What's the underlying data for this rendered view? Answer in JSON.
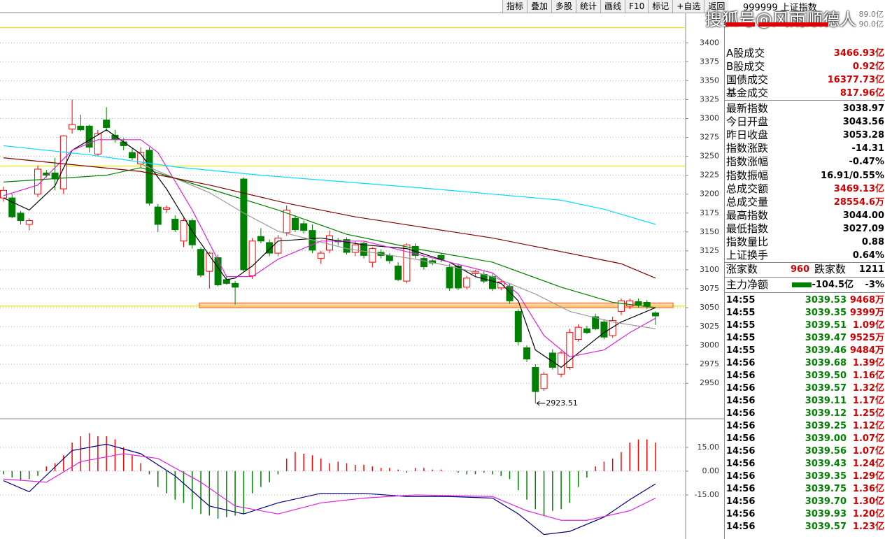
{
  "toolbar": [
    "指标",
    "叠加",
    "多股",
    "统计",
    "画线",
    "F10",
    "标记",
    "+自选",
    "返回"
  ],
  "watermark": "搜狐号@风雨顺德人",
  "header": {
    "title": "999999 上证指数",
    "scale": [
      "89.0亿",
      "90.0亿"
    ]
  },
  "panel": {
    "rows": [
      {
        "label": "A股成交",
        "value": "3466.93亿"
      },
      {
        "label": "B股成交",
        "value": "0.92亿"
      },
      {
        "label": "国债成交",
        "value": "16377.73亿"
      },
      {
        "label": "基金成交",
        "value": "817.96亿"
      },
      {
        "label": "最新指数",
        "value": "3038.97"
      },
      {
        "label": "今日开盘",
        "value": "3043.56"
      },
      {
        "label": "昨日收盘",
        "value": "3053.28"
      },
      {
        "label": "指数涨跌",
        "value": "-14.31"
      },
      {
        "label": "指数涨幅",
        "value": "-0.47%"
      },
      {
        "label": "指数振幅",
        "value": "16.91/0.55%"
      },
      {
        "label": "总成交额",
        "value": "3469.13亿"
      },
      {
        "label": "总成交量",
        "value": "28554.6万"
      },
      {
        "label": "最高指数",
        "value": "3044.00"
      },
      {
        "label": "最低指数",
        "value": "3027.09"
      },
      {
        "label": "指数量比",
        "value": "0.88"
      },
      {
        "label": "上证换手",
        "value": "0.64%"
      }
    ],
    "breadth": [
      "涨家数",
      "960",
      "跌家数",
      "1211"
    ],
    "flow": [
      "主力净额",
      "-104.5亿",
      "-3%"
    ]
  },
  "ticks": {
    "rows": [
      [
        "14:55",
        "3039.53",
        "9468万"
      ],
      [
        "14:55",
        "3039.35",
        "9399万"
      ],
      [
        "14:55",
        "3039.51",
        "1.09亿"
      ],
      [
        "14:55",
        "3039.47",
        "9525万"
      ],
      [
        "14:55",
        "3039.46",
        "9484万"
      ],
      [
        "14:56",
        "3039.68",
        "1.39亿"
      ],
      [
        "14:56",
        "3039.50",
        "1.16亿"
      ],
      [
        "14:56",
        "3039.57",
        "1.32亿"
      ],
      [
        "14:56",
        "3039.11",
        "1.17亿"
      ],
      [
        "14:56",
        "3039.12",
        "1.25亿"
      ],
      [
        "14:56",
        "3039.25",
        "1.12亿"
      ],
      [
        "14:56",
        "3039.00",
        "1.07亿"
      ],
      [
        "14:56",
        "3039.56",
        "1.07亿"
      ],
      [
        "14:56",
        "3039.43",
        "1.24亿"
      ],
      [
        "14:56",
        "3039.35",
        "1.29亿"
      ],
      [
        "14:56",
        "3039.75",
        "1.36亿"
      ],
      [
        "14:56",
        "3039.70",
        "1.30亿"
      ],
      [
        "14:56",
        "3039.93",
        "1.20亿"
      ],
      [
        "14:56",
        "3039.57",
        "1.23亿"
      ]
    ]
  },
  "chart_data": [
    {
      "type": "candlestick",
      "up_color": "#ff0000",
      "down_color": "#008000",
      "open": [
        3195,
        3195,
        3175,
        3160,
        3200,
        3228,
        3228,
        3207,
        3286,
        3290,
        3290,
        3253,
        3298,
        3278,
        3269,
        3255,
        3240,
        3258,
        3183,
        3180,
        3167,
        3138,
        3165,
        3127,
        3098,
        3116,
        3087,
        3082,
        3220,
        3092,
        3144,
        3136,
        3122,
        3149,
        3168,
        3161,
        3152,
        3115,
        3126,
        3139,
        3140,
        3123,
        3135,
        3110,
        3123,
        3119,
        3105,
        3085,
        3131,
        3115,
        3112,
        3119,
        3103,
        3105,
        3077,
        3095,
        3094,
        3091,
        3076,
        3078,
        3045,
        2997,
        2971,
        2943,
        2990,
        2962,
        2971,
        3008,
        3022,
        3038,
        3031,
        3013,
        3045,
        3052,
        3058,
        3057,
        3043
      ],
      "high": [
        3210,
        3200,
        3178,
        3168,
        3238,
        3232,
        3248,
        3278,
        3325,
        3305,
        3292,
        3285,
        3315,
        3285,
        3274,
        3260,
        3262,
        3262,
        3187,
        3185,
        3172,
        3168,
        3168,
        3130,
        3124,
        3120,
        3092,
        3085,
        3222,
        3142,
        3155,
        3140,
        3146,
        3185,
        3172,
        3165,
        3160,
        3125,
        3152,
        3142,
        3143,
        3138,
        3138,
        3130,
        3127,
        3122,
        3110,
        3135,
        3135,
        3118,
        3114,
        3122,
        3108,
        3108,
        3092,
        3100,
        3098,
        3095,
        3088,
        3082,
        3048,
        3000,
        2975,
        2965,
        2995,
        2993,
        3022,
        3028,
        3026,
        3042,
        3035,
        3038,
        3062,
        3062,
        3062,
        3060,
        3045
      ],
      "low": [
        3190,
        3168,
        3160,
        3152,
        3196,
        3222,
        3205,
        3200,
        3280,
        3283,
        3255,
        3250,
        3283,
        3268,
        3258,
        3245,
        3236,
        3185,
        3150,
        3175,
        3150,
        3130,
        3128,
        3090,
        3075,
        3078,
        3080,
        3054,
        3097,
        3088,
        3135,
        3118,
        3118,
        3145,
        3150,
        3148,
        3122,
        3108,
        3122,
        3132,
        3120,
        3118,
        3115,
        3103,
        3115,
        3108,
        3085,
        3082,
        3115,
        3100,
        3106,
        3110,
        3072,
        3073,
        3074,
        3092,
        3082,
        3072,
        3073,
        3055,
        3000,
        2978,
        2923.51,
        2940,
        2968,
        2958,
        2968,
        3005,
        3015,
        3020,
        3008,
        3010,
        3040,
        3048,
        3050,
        3048,
        3027
      ],
      "close": [
        3205,
        3170,
        3165,
        3165,
        3233,
        3225,
        3220,
        3277,
        3292,
        3285,
        3262,
        3280,
        3288,
        3272,
        3264,
        3248,
        3255,
        3188,
        3160,
        3182,
        3153,
        3165,
        3133,
        3093,
        3122,
        3080,
        3082,
        3077,
        3100,
        3138,
        3138,
        3122,
        3142,
        3179,
        3153,
        3152,
        3126,
        3122,
        3145,
        3137,
        3123,
        3133,
        3119,
        3128,
        3119,
        3112,
        3087,
        3133,
        3119,
        3104,
        3109,
        3114,
        3076,
        3076,
        3089,
        3098,
        3085,
        3075,
        3084,
        3059,
        3005,
        2982,
        2939,
        2962,
        2971,
        2990,
        3017,
        3024,
        3017,
        3022,
        3011,
        3033,
        3059,
        3059,
        3054,
        3052,
        3039
      ],
      "lines": [
        {
          "color": "#000000",
          "x": [
            0,
            3,
            6,
            8,
            12,
            16,
            19,
            22,
            26,
            27,
            29,
            32,
            37,
            42,
            47,
            52,
            55,
            58,
            60,
            62,
            65,
            67,
            70,
            72,
            76
          ],
          "values": [
            3195,
            3179,
            3211,
            3258,
            3285,
            3253,
            3207,
            3151,
            3087,
            3089,
            3105,
            3138,
            3142,
            3133,
            3128,
            3110,
            3091,
            3082,
            3059,
            2994,
            2971,
            2990,
            3017,
            3031,
            3050
          ]
        },
        {
          "color": "#e020e0",
          "x": [
            0,
            4,
            8,
            11,
            16,
            18,
            22,
            26,
            29,
            32,
            37,
            42,
            47,
            52,
            57,
            60,
            63,
            66,
            70,
            73,
            76
          ],
          "values": [
            3198,
            3212,
            3258,
            3272,
            3272,
            3255,
            3179,
            3091,
            3091,
            3114,
            3138,
            3138,
            3124,
            3110,
            3096,
            3068,
            3013,
            2985,
            2994,
            3017,
            3036
          ]
        },
        {
          "color": "#999999",
          "x": [
            16,
            24,
            28,
            32,
            40,
            48,
            52,
            57,
            62,
            66,
            71,
            76
          ],
          "values": [
            3240,
            3202,
            3175,
            3151,
            3128,
            3114,
            3105,
            3091,
            3068,
            3045,
            3031,
            3022
          ]
        },
        {
          "color": "#008000",
          "x": [
            0,
            12,
            16,
            24,
            32,
            40,
            48,
            57,
            65,
            71,
            76
          ],
          "values": [
            3216,
            3225,
            3235,
            3207,
            3179,
            3147,
            3128,
            3110,
            3077,
            3057,
            3050
          ]
        },
        {
          "color": "#800000",
          "x": [
            0,
            16,
            24,
            33,
            41,
            49,
            57,
            65,
            72,
            76
          ],
          "values": [
            3248,
            3230,
            3212,
            3188,
            3170,
            3156,
            3142,
            3124,
            3108,
            3089
          ]
        },
        {
          "color": "#00dcff",
          "x": [
            0,
            10,
            20,
            30,
            40,
            50,
            57,
            65,
            70,
            76
          ],
          "values": [
            3264,
            3252,
            3236,
            3225,
            3216,
            3207,
            3200,
            3192,
            3180,
            3160
          ]
        }
      ],
      "levels": [
        {
          "value": 3420,
          "color": "#e8e800"
        },
        {
          "value": 3237,
          "color": "#e8e800"
        },
        {
          "value": 3052,
          "color": "#e8e800"
        }
      ],
      "zone": {
        "range": [
          3050,
          3056
        ],
        "color": "#ff8040"
      },
      "annotation": {
        "x": 62,
        "value": 2923.51
      },
      "ylim": [
        2904,
        3440
      ],
      "yticks": [
        2950,
        2975,
        3000,
        3025,
        3050,
        3075,
        3100,
        3125,
        3150,
        3175,
        3200,
        3225,
        3250,
        3275,
        3300,
        3325,
        3350,
        3375,
        3400
      ],
      "grid": true
    },
    {
      "type": "macd",
      "up_color": "#ff0000",
      "down_color": "#008000",
      "values": [
        -2,
        -4,
        -6,
        -5,
        -3,
        3,
        5,
        10,
        18,
        22,
        24,
        22,
        22,
        20,
        15,
        10,
        5,
        -2,
        -10,
        -14,
        -18,
        -20,
        -24,
        -27,
        -28,
        -30,
        -29,
        -28,
        -27,
        -14,
        -10,
        -7,
        -2,
        8,
        12,
        11,
        10,
        8,
        5,
        6,
        5,
        4,
        4,
        3,
        2,
        2,
        1,
        -1,
        2,
        2,
        1,
        1,
        0,
        -1,
        -2,
        -2,
        -1,
        -2,
        -3,
        -5,
        -12,
        -18,
        -24,
        -28,
        -25,
        -24,
        -20,
        -10,
        -4,
        3,
        6,
        8,
        12,
        18,
        20,
        20,
        18
      ],
      "lines": [
        {
          "color": "#000080",
          "x": [
            0,
            3,
            8,
            12,
            16,
            20,
            24,
            28,
            32,
            37,
            42,
            47,
            52,
            57,
            60,
            63,
            66,
            70,
            73,
            76
          ],
          "values": [
            -6,
            -13,
            13,
            17,
            11,
            -3,
            -22,
            -27,
            -20,
            -14,
            -14,
            -16,
            -16,
            -17,
            -27,
            -40,
            -38,
            -29,
            -18,
            -8
          ]
        },
        {
          "color": "#e020e0",
          "x": [
            0,
            5,
            9,
            14,
            18,
            23,
            27,
            32,
            37,
            42,
            48,
            57,
            61,
            65,
            68,
            73,
            76
          ],
          "values": [
            -5,
            -7,
            6,
            11,
            8,
            -7,
            -22,
            -27,
            -20,
            -17,
            -15,
            -16,
            -25,
            -31,
            -31,
            -25,
            -17
          ]
        }
      ],
      "ylim": [
        -42.8,
        32.6
      ],
      "yticks": [
        {
          "value": 15,
          "label": "15.00"
        },
        {
          "value": 0,
          "label": "0.00"
        },
        {
          "value": -15,
          "label": "-15.00"
        }
      ],
      "grid": true
    }
  ]
}
